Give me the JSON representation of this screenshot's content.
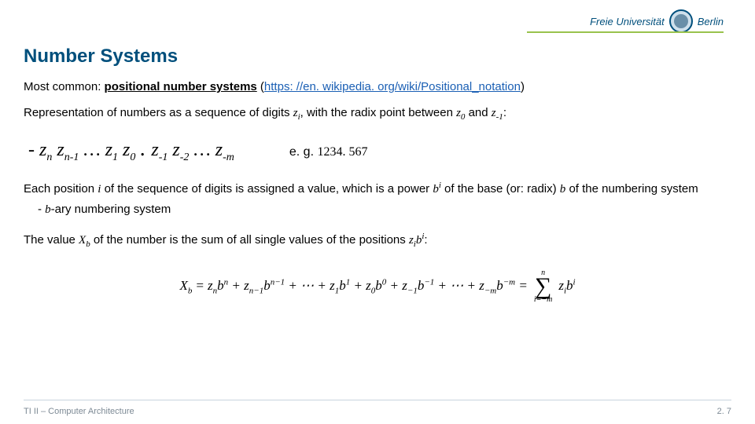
{
  "brand": {
    "name_left": "Freie Universität",
    "name_right": "Berlin",
    "accent_color": "#99c24d",
    "brand_color": "#004f7c"
  },
  "title": "Number Systems",
  "p1_prefix": "Most common: ",
  "p1_emph": "positional number systems",
  "p1_paren_open": " (",
  "p1_link": "https: //en. wikipedia. org/wiki/Positional_notation",
  "p1_paren_close": ")",
  "p2_a": "Representation of numbers as a sequence of digits ",
  "p2_zi": "z",
  "p2_zi_sub": "i",
  "p2_b": ", with the radix point between ",
  "p2_z0": "z",
  "p2_z0_sub": "0",
  "p2_c": " and ",
  "p2_zm1": "z",
  "p2_zm1_sub": "-1",
  "p2_d": ":",
  "digits_seq": "- z<sub>n</sub> z<sub>n-1</sub> … z<sub>1</sub> z<sub>0</sub> <span style=\"font-size:28px;line-height:0;\"> . </span> z<sub>-1</sub> z<sub>-2</sub> … z<sub>-m</sub>",
  "eg_label": "e. g. ",
  "eg_value": "1234. 567",
  "p3_a": "Each position ",
  "p3_i": "i",
  "p3_b": " of the sequence of digits is assigned a value, which is a power ",
  "p3_bi": "b",
  "p3_bi_sup": "i",
  "p3_c": " of the base (or: radix) ",
  "p3_base": "b",
  "p3_d": " of the numbering system",
  "p3_bullet": " - ",
  "p3_bary": "b",
  "p3_bary_suffix": "-ary numbering system",
  "p4_a": "The value ",
  "p4_xb": "X",
  "p4_xb_sub": "b",
  "p4_b": " of the number is the sum of all single values of the positions ",
  "p4_zi": "z",
  "p4_zi_sub": "i",
  "p4_bi": "b",
  "p4_bi_sup": "i",
  "p4_c": ":",
  "formula": {
    "lhs": "X",
    "lhs_sub": "b",
    "terms": "= z<sub>n</sub>b<sup>n</sup> + z<sub>n−1</sub>b<sup>n−1</sup> + ⋯ + z<sub>1</sub>b<sup>1</sup> + z<sub>0</sub>b<sup>0</sup> + z<sub>−1</sub>b<sup>−1</sup> + ⋯ + z<sub>−m</sub>b<sup>−m</sup> =",
    "sigma_top": "n",
    "sigma_bot": "i=−m",
    "sigma_body": "z<sub>i</sub>b<sup>i</sup>"
  },
  "footer_left": "TI II – Computer Architecture",
  "footer_right": "2. 7"
}
